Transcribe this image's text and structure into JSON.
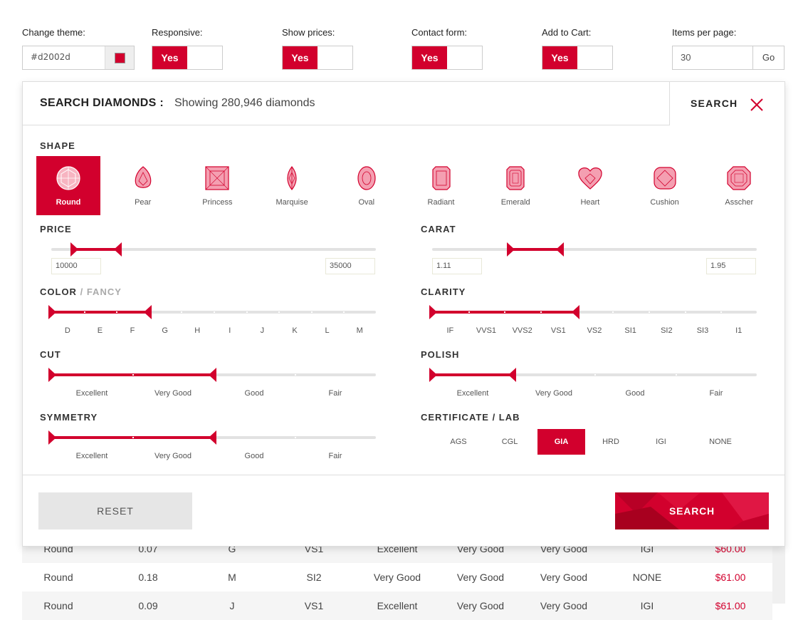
{
  "settings": {
    "theme": {
      "label": "Change theme:",
      "value": "#d2002d"
    },
    "responsive": {
      "label": "Responsive:",
      "value": "Yes"
    },
    "show_prices": {
      "label": "Show prices:",
      "value": "Yes"
    },
    "contact_form": {
      "label": "Contact form:",
      "value": "Yes"
    },
    "add_to_cart": {
      "label": "Add to Cart:",
      "value": "Yes"
    },
    "items_per_page": {
      "label": "Items per page:",
      "value": "30",
      "go": "Go"
    }
  },
  "colors": {
    "accent": "#d2002d",
    "light_gray": "#e6e6e6",
    "border": "#dddddd"
  },
  "header": {
    "title": "SEARCH DIAMONDS :",
    "count": "Showing 280,946 diamonds",
    "search": "SEARCH",
    "close_icon": "close-icon"
  },
  "shape": {
    "label": "SHAPE",
    "selected": "Round",
    "items": [
      "Round",
      "Pear",
      "Princess",
      "Marquise",
      "Oval",
      "Radiant",
      "Emerald",
      "Heart",
      "Cushion",
      "Asscher"
    ]
  },
  "price": {
    "label": "PRICE",
    "min": "10000",
    "max": "35000"
  },
  "carat": {
    "label": "CARAT",
    "min": "1.11",
    "max": "1.95"
  },
  "color": {
    "label": "COLOR",
    "separator": "/",
    "alt_label": "FANCY",
    "scale": [
      "D",
      "E",
      "F",
      "G",
      "H",
      "I",
      "J",
      "K",
      "L",
      "M"
    ],
    "selected_from": "D",
    "selected_to": "F"
  },
  "clarity": {
    "label": "CLARITY",
    "scale": [
      "IF",
      "VVS1",
      "VVS2",
      "VS1",
      "VS2",
      "SI1",
      "SI2",
      "SI3",
      "I1"
    ],
    "selected_from": "IF",
    "selected_to": "VS1"
  },
  "cut": {
    "label": "CUT",
    "scale": [
      "Excellent",
      "Very Good",
      "Good",
      "Fair"
    ],
    "selected_from": "Excellent",
    "selected_to": "Very Good"
  },
  "polish": {
    "label": "POLISH",
    "scale": [
      "Excellent",
      "Very Good",
      "Good",
      "Fair"
    ],
    "selected_from": "Excellent",
    "selected_to": "Excellent"
  },
  "symmetry": {
    "label": "SYMMETRY",
    "scale": [
      "Excellent",
      "Very Good",
      "Good",
      "Fair"
    ],
    "selected_from": "Excellent",
    "selected_to": "Very Good"
  },
  "certificate": {
    "label": "CERTIFICATE / LAB",
    "items": [
      "AGS",
      "CGL",
      "GIA",
      "HRD",
      "IGI",
      "NONE"
    ],
    "selected": "GIA"
  },
  "footer": {
    "reset": "RESET",
    "search": "SEARCH"
  },
  "results": {
    "rows": [
      [
        "Round",
        "0.07",
        "G",
        "VS1",
        "Excellent",
        "Very Good",
        "Very Good",
        "IGI",
        "$60.00"
      ],
      [
        "Round",
        "0.18",
        "M",
        "SI2",
        "Very Good",
        "Very Good",
        "Very Good",
        "NONE",
        "$61.00"
      ],
      [
        "Round",
        "0.09",
        "J",
        "VS1",
        "Excellent",
        "Very Good",
        "Very Good",
        "IGI",
        "$61.00"
      ]
    ]
  }
}
